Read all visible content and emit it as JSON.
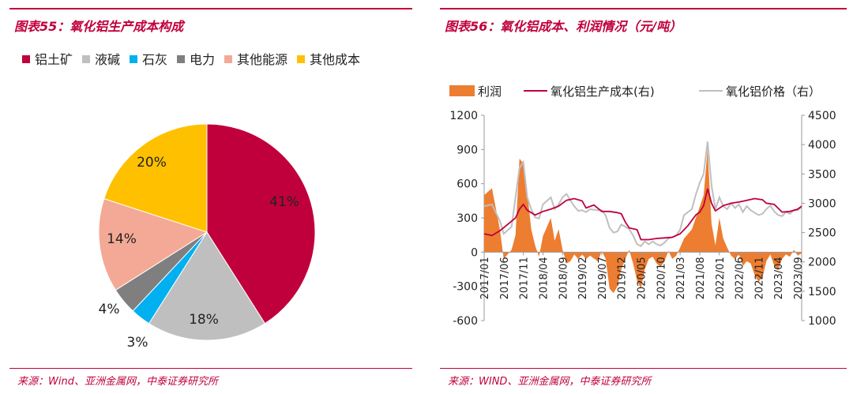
{
  "left_panel": {
    "title": "图表55：氧化铝生产成本构成",
    "source": "来源：Wind、亚洲金属网，中泰证券研究所"
  },
  "right_panel": {
    "title": "图表56：氧化铝成本、利润情况（元/吨）",
    "source": "来源：WIND、亚洲金属网，中泰证券研究所"
  },
  "chart_data": [
    {
      "type": "pie",
      "slices": [
        {
          "label": "铝土矿",
          "value": 41,
          "display": "41%",
          "color": "#c0003c"
        },
        {
          "label": "液碱",
          "value": 18,
          "display": "18%",
          "color": "#bfbfbf"
        },
        {
          "label": "石灰",
          "value": 3,
          "display": "3%",
          "color": "#00b0f0"
        },
        {
          "label": "电力",
          "value": 4,
          "display": "4%",
          "color": "#7f7f7f"
        },
        {
          "label": "其他能源",
          "value": 14,
          "display": "14%",
          "color": "#f4a996"
        },
        {
          "label": "其他成本",
          "value": 20,
          "display": "20%",
          "color": "#ffc000"
        }
      ],
      "legend_position": "top"
    },
    {
      "type": "line",
      "x_tick_labels": [
        "2017/01",
        "2017/06",
        "2017/11",
        "2018/04",
        "2018/09",
        "2019/02",
        "2019/07",
        "2019/12",
        "2020/05",
        "2020/10",
        "2021/03",
        "2021/08",
        "2022/01",
        "2022/06",
        "2022/11",
        "2023/04",
        "2023/09"
      ],
      "x_range": [
        "2017/01",
        "2023/10"
      ],
      "y_left": {
        "min": -600,
        "max": 1200,
        "ticks": [
          -600,
          -300,
          0,
          300,
          600,
          900,
          1200
        ]
      },
      "y_right": {
        "min": 1000,
        "max": 4500,
        "ticks": [
          1000,
          1500,
          2000,
          2500,
          3000,
          3500,
          4000,
          4500
        ]
      },
      "series": [
        {
          "name": "利润",
          "kind": "area",
          "axis": "left",
          "color": "#ed7d31",
          "points": [
            [
              "2017/01",
              500
            ],
            [
              "2017/03",
              560
            ],
            [
              "2017/05",
              200
            ],
            [
              "2017/06",
              -60
            ],
            [
              "2017/08",
              20
            ],
            [
              "2017/09",
              150
            ],
            [
              "2017/10",
              820
            ],
            [
              "2017/11",
              780
            ],
            [
              "2017/12",
              520
            ],
            [
              "2018/01",
              200
            ],
            [
              "2018/02",
              60
            ],
            [
              "2018/03",
              -40
            ],
            [
              "2018/04",
              140
            ],
            [
              "2018/06",
              300
            ],
            [
              "2018/07",
              100
            ],
            [
              "2018/08",
              200
            ],
            [
              "2018/09",
              20
            ],
            [
              "2018/10",
              -100
            ],
            [
              "2018/11",
              -80
            ],
            [
              "2018/12",
              -20
            ],
            [
              "2019/01",
              -60
            ],
            [
              "2019/02",
              -20
            ],
            [
              "2019/03",
              -60
            ],
            [
              "2019/04",
              -30
            ],
            [
              "2019/06",
              -80
            ],
            [
              "2019/07",
              10
            ],
            [
              "2019/08",
              -60
            ],
            [
              "2019/09",
              -320
            ],
            [
              "2019/10",
              -360
            ],
            [
              "2019/11",
              -300
            ],
            [
              "2019/12",
              -150
            ],
            [
              "2020/01",
              -60
            ],
            [
              "2020/02",
              20
            ],
            [
              "2020/03",
              -100
            ],
            [
              "2020/04",
              -250
            ],
            [
              "2020/05",
              -320
            ],
            [
              "2020/06",
              -150
            ],
            [
              "2020/07",
              -60
            ],
            [
              "2020/08",
              -40
            ],
            [
              "2020/09",
              -100
            ],
            [
              "2020/10",
              -130
            ],
            [
              "2020/11",
              -80
            ],
            [
              "2020/12",
              10
            ],
            [
              "2021/01",
              -60
            ],
            [
              "2021/02",
              -30
            ],
            [
              "2021/03",
              40
            ],
            [
              "2021/04",
              120
            ],
            [
              "2021/05",
              160
            ],
            [
              "2021/06",
              200
            ],
            [
              "2021/07",
              300
            ],
            [
              "2021/08",
              400
            ],
            [
              "2021/09",
              500
            ],
            [
              "2021/10",
              900
            ],
            [
              "2021/11",
              250
            ],
            [
              "2021/12",
              60
            ],
            [
              "2022/01",
              300
            ],
            [
              "2022/02",
              120
            ],
            [
              "2022/03",
              40
            ],
            [
              "2022/04",
              -30
            ],
            [
              "2022/05",
              -60
            ],
            [
              "2022/06",
              -20
            ],
            [
              "2022/07",
              -120
            ],
            [
              "2022/08",
              -80
            ],
            [
              "2022/09",
              -100
            ],
            [
              "2022/10",
              -200
            ],
            [
              "2022/11",
              -260
            ],
            [
              "2022/12",
              -220
            ],
            [
              "2023/01",
              -80
            ],
            [
              "2023/02",
              -20
            ],
            [
              "2023/03",
              -120
            ],
            [
              "2023/04",
              -160
            ],
            [
              "2023/05",
              -60
            ],
            [
              "2023/06",
              -20
            ],
            [
              "2023/07",
              -40
            ],
            [
              "2023/08",
              20
            ],
            [
              "2023/09",
              -30
            ],
            [
              "2023/10",
              -10
            ]
          ]
        },
        {
          "name": "氧化铝生产成本(右)",
          "kind": "line",
          "axis": "right",
          "color": "#c0003c",
          "points": [
            [
              "2017/01",
              2480
            ],
            [
              "2017/03",
              2450
            ],
            [
              "2017/05",
              2530
            ],
            [
              "2017/07",
              2640
            ],
            [
              "2017/09",
              2750
            ],
            [
              "2017/10",
              2900
            ],
            [
              "2017/11",
              2980
            ],
            [
              "2017/12",
              2880
            ],
            [
              "2018/02",
              2800
            ],
            [
              "2018/04",
              2860
            ],
            [
              "2018/06",
              2900
            ],
            [
              "2018/08",
              2950
            ],
            [
              "2018/10",
              3050
            ],
            [
              "2018/12",
              3080
            ],
            [
              "2019/02",
              3040
            ],
            [
              "2019/03",
              2920
            ],
            [
              "2019/05",
              2970
            ],
            [
              "2019/07",
              2860
            ],
            [
              "2019/09",
              2860
            ],
            [
              "2019/11",
              2840
            ],
            [
              "2019/12",
              2820
            ],
            [
              "2020/01",
              2680
            ],
            [
              "2020/02",
              2580
            ],
            [
              "2020/04",
              2550
            ],
            [
              "2020/05",
              2380
            ],
            [
              "2020/07",
              2380
            ],
            [
              "2020/09",
              2400
            ],
            [
              "2020/11",
              2410
            ],
            [
              "2021/01",
              2420
            ],
            [
              "2021/03",
              2480
            ],
            [
              "2021/05",
              2620
            ],
            [
              "2021/07",
              2800
            ],
            [
              "2021/08",
              2850
            ],
            [
              "2021/09",
              2960
            ],
            [
              "2021/10",
              3250
            ],
            [
              "2021/11",
              3000
            ],
            [
              "2021/12",
              2870
            ],
            [
              "2022/02",
              2960
            ],
            [
              "2022/04",
              3000
            ],
            [
              "2022/06",
              3020
            ],
            [
              "2022/08",
              3050
            ],
            [
              "2022/10",
              3080
            ],
            [
              "2022/12",
              3060
            ],
            [
              "2023/01",
              3000
            ],
            [
              "2023/03",
              2980
            ],
            [
              "2023/05",
              2850
            ],
            [
              "2023/07",
              2860
            ],
            [
              "2023/09",
              2900
            ],
            [
              "2023/10",
              2950
            ]
          ]
        },
        {
          "name": "氧化铝价格（右）",
          "kind": "line",
          "axis": "right",
          "color": "#bfbfbf",
          "points": [
            [
              "2017/01",
              2950
            ],
            [
              "2017/03",
              2980
            ],
            [
              "2017/05",
              2700
            ],
            [
              "2017/06",
              2480
            ],
            [
              "2017/08",
              2600
            ],
            [
              "2017/09",
              3100
            ],
            [
              "2017/10",
              3600
            ],
            [
              "2017/11",
              3700
            ],
            [
              "2017/12",
              3100
            ],
            [
              "2018/01",
              2900
            ],
            [
              "2018/02",
              2760
            ],
            [
              "2018/03",
              2740
            ],
            [
              "2018/04",
              2980
            ],
            [
              "2018/06",
              3100
            ],
            [
              "2018/07",
              2900
            ],
            [
              "2018/08",
              2980
            ],
            [
              "2018/09",
              3100
            ],
            [
              "2018/10",
              3160
            ],
            [
              "2018/11",
              3050
            ],
            [
              "2018/12",
              2950
            ],
            [
              "2019/01",
              2870
            ],
            [
              "2019/02",
              2880
            ],
            [
              "2019/03",
              2850
            ],
            [
              "2019/04",
              2900
            ],
            [
              "2019/06",
              2880
            ],
            [
              "2019/07",
              2880
            ],
            [
              "2019/08",
              2790
            ],
            [
              "2019/09",
              2580
            ],
            [
              "2019/10",
              2500
            ],
            [
              "2019/11",
              2520
            ],
            [
              "2019/12",
              2640
            ],
            [
              "2020/01",
              2600
            ],
            [
              "2020/02",
              2560
            ],
            [
              "2020/03",
              2450
            ],
            [
              "2020/04",
              2300
            ],
            [
              "2020/05",
              2270
            ],
            [
              "2020/06",
              2350
            ],
            [
              "2020/07",
              2300
            ],
            [
              "2020/08",
              2350
            ],
            [
              "2020/09",
              2300
            ],
            [
              "2020/10",
              2280
            ],
            [
              "2020/11",
              2330
            ],
            [
              "2020/12",
              2400
            ],
            [
              "2021/01",
              2420
            ],
            [
              "2021/02",
              2450
            ],
            [
              "2021/03",
              2550
            ],
            [
              "2021/04",
              2800
            ],
            [
              "2021/05",
              2850
            ],
            [
              "2021/06",
              2900
            ],
            [
              "2021/07",
              3150
            ],
            [
              "2021/08",
              3350
            ],
            [
              "2021/09",
              3500
            ],
            [
              "2021/10",
              4050
            ],
            [
              "2021/11",
              3300
            ],
            [
              "2021/12",
              2900
            ],
            [
              "2022/01",
              3100
            ],
            [
              "2022/02",
              2950
            ],
            [
              "2022/03",
              2900
            ],
            [
              "2022/04",
              3000
            ],
            [
              "2022/05",
              2920
            ],
            [
              "2022/06",
              2980
            ],
            [
              "2022/07",
              2850
            ],
            [
              "2022/08",
              2950
            ],
            [
              "2022/09",
              2880
            ],
            [
              "2022/10",
              2840
            ],
            [
              "2022/11",
              2800
            ],
            [
              "2022/12",
              2820
            ],
            [
              "2023/01",
              2900
            ],
            [
              "2023/02",
              2960
            ],
            [
              "2023/03",
              2860
            ],
            [
              "2023/04",
              2800
            ],
            [
              "2023/05",
              2780
            ],
            [
              "2023/06",
              2850
            ],
            [
              "2023/07",
              2820
            ],
            [
              "2023/08",
              2880
            ],
            [
              "2023/09",
              2880
            ],
            [
              "2023/10",
              2940
            ]
          ]
        }
      ]
    }
  ]
}
